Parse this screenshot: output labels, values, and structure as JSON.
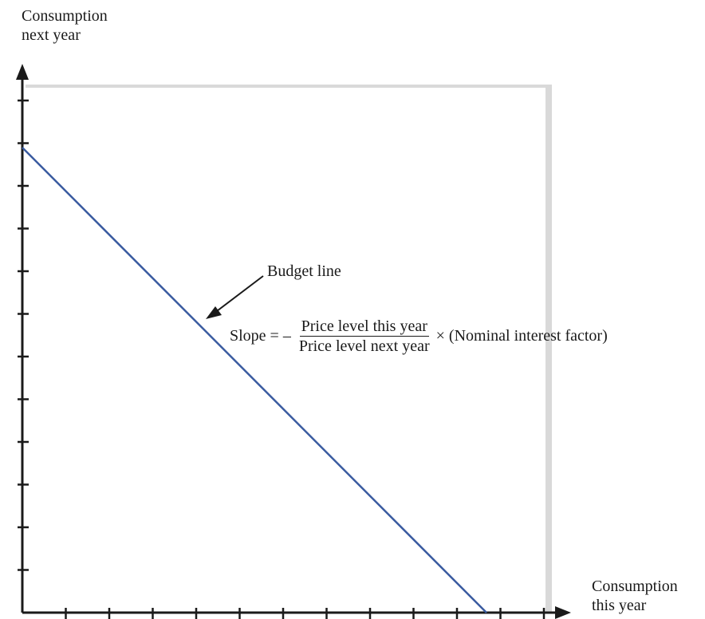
{
  "y_axis_label": [
    "Consumption",
    "next year"
  ],
  "x_axis_label": [
    "Consumption",
    "this year"
  ],
  "annotation": {
    "label": "Budget line"
  },
  "slope": {
    "prefix": "Slope = –",
    "numerator": "Price level this year",
    "denominator": "Price level next year",
    "suffix": "× (Nominal interest factor)"
  },
  "colors": {
    "budget_line": "#3a5ba0",
    "plot_background": "#ffffff",
    "shadow": "#d9d9d9",
    "axis": "#1a1a1a"
  }
}
